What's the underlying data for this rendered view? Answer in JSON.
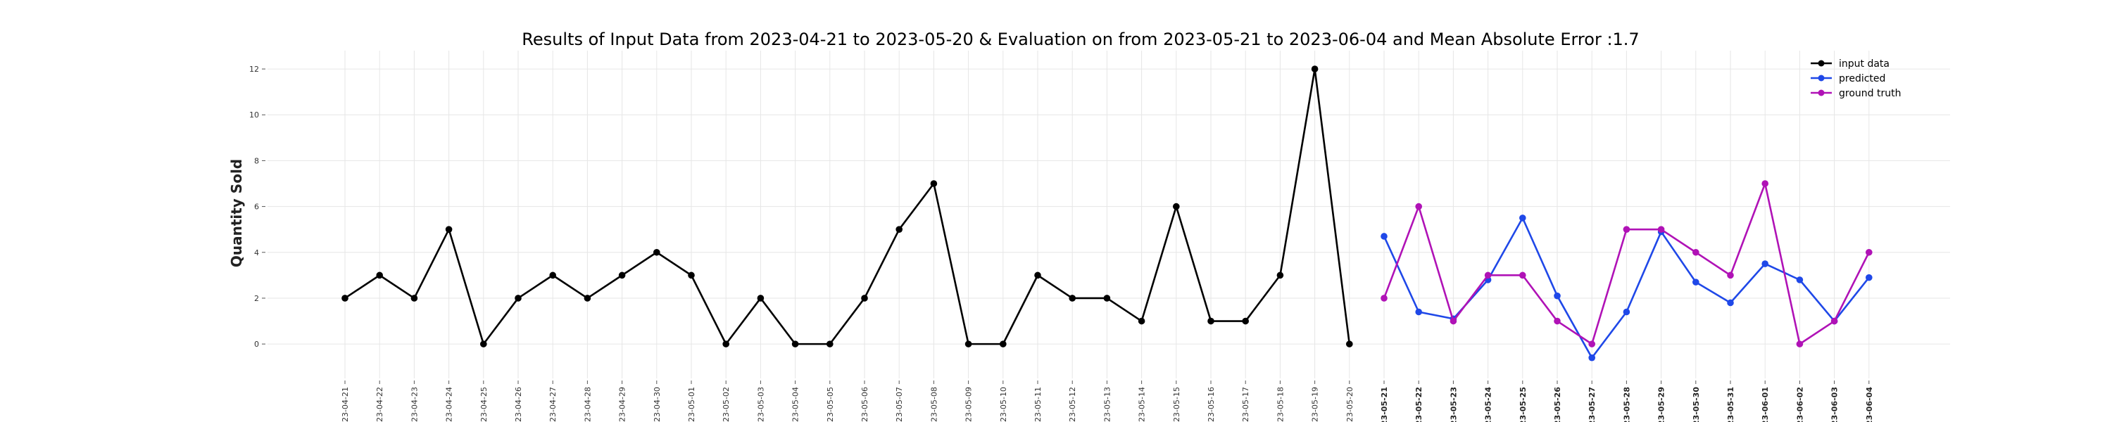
{
  "chart_data": {
    "type": "line",
    "title": "Results of Input Data from 2023-04-21 to 2023-05-20 & Evaluation on from 2023-05-21 to 2023-06-04 and Mean Absolute Error  :1.7",
    "xlabel": "",
    "ylabel": "Quantity Sold",
    "ylim": [
      -1.5,
      12.8
    ],
    "yticks": [
      0,
      2,
      4,
      6,
      8,
      10,
      12
    ],
    "ytick_labels": [
      "0",
      "2",
      "4",
      "6",
      "8",
      "10",
      "12"
    ],
    "grid": true,
    "legend_position": "top-right",
    "categories": [
      "2023-04-21",
      "2023-04-22",
      "2023-04-23",
      "2023-04-24",
      "2023-04-25",
      "2023-04-26",
      "2023-04-27",
      "2023-04-28",
      "2023-04-29",
      "2023-04-30",
      "2023-05-01",
      "2023-05-02",
      "2023-05-03",
      "2023-05-04",
      "2023-05-05",
      "2023-05-06",
      "2023-05-07",
      "2023-05-08",
      "2023-05-09",
      "2023-05-10",
      "2023-05-11",
      "2023-05-12",
      "2023-05-13",
      "2023-05-14",
      "2023-05-15",
      "2023-05-16",
      "2023-05-17",
      "2023-05-18",
      "2023-05-19",
      "2023-05-20",
      "2023-05-21",
      "2023-05-22",
      "2023-05-23",
      "2023-05-24",
      "2023-05-25",
      "2023-05-26",
      "2023-05-27",
      "2023-05-28",
      "2023-05-29",
      "2023-05-30",
      "2023-05-31",
      "2023-06-01",
      "2023-06-02",
      "2023-06-03",
      "2023-06-04"
    ],
    "tick_labels": [
      "23-04-21",
      "23-04-22",
      "23-04-23",
      "23-04-24",
      "23-04-25",
      "23-04-26",
      "23-04-27",
      "23-04-28",
      "23-04-29",
      "23-04-30",
      "23-05-01",
      "23-05-02",
      "23-05-03",
      "23-05-04",
      "23-05-05",
      "23-05-06",
      "23-05-07",
      "23-05-08",
      "23-05-09",
      "23-05-10",
      "23-05-11",
      "23-05-12",
      "23-05-13",
      "23-05-14",
      "23-05-15",
      "23-05-16",
      "23-05-17",
      "23-05-18",
      "23-05-19",
      "23-05-20",
      "23-05-21",
      "23-05-22",
      "23-05-23",
      "23-05-24",
      "23-05-25",
      "23-05-26",
      "23-05-27",
      "23-05-28",
      "23-05-29",
      "23-05-30",
      "23-05-31",
      "23-06-01",
      "23-06-02",
      "23-06-03",
      "23-06-04"
    ],
    "bold_ticks_from": "2023-05-21",
    "series": [
      {
        "name": "input data",
        "color": "#000000",
        "x": [
          "2023-04-21",
          "2023-04-22",
          "2023-04-23",
          "2023-04-24",
          "2023-04-25",
          "2023-04-26",
          "2023-04-27",
          "2023-04-28",
          "2023-04-29",
          "2023-04-30",
          "2023-05-01",
          "2023-05-02",
          "2023-05-03",
          "2023-05-04",
          "2023-05-05",
          "2023-05-06",
          "2023-05-07",
          "2023-05-08",
          "2023-05-09",
          "2023-05-10",
          "2023-05-11",
          "2023-05-12",
          "2023-05-13",
          "2023-05-14",
          "2023-05-15",
          "2023-05-16",
          "2023-05-17",
          "2023-05-18",
          "2023-05-19",
          "2023-05-20"
        ],
        "values": [
          2,
          3,
          2,
          5,
          0,
          2,
          3,
          2,
          3,
          4,
          3,
          0,
          2,
          0,
          0,
          2,
          5,
          7,
          0,
          0,
          3,
          2,
          2,
          1,
          6,
          1,
          1,
          3,
          12,
          0
        ]
      },
      {
        "name": "predicted",
        "color": "#1f48e8",
        "x": [
          "2023-05-21",
          "2023-05-22",
          "2023-05-23",
          "2023-05-24",
          "2023-05-25",
          "2023-05-26",
          "2023-05-27",
          "2023-05-28",
          "2023-05-29",
          "2023-05-30",
          "2023-05-31",
          "2023-06-01",
          "2023-06-02",
          "2023-06-03",
          "2023-06-04"
        ],
        "values": [
          4.7,
          1.4,
          1.1,
          2.8,
          5.5,
          2.1,
          -0.6,
          1.4,
          4.9,
          2.7,
          1.8,
          3.5,
          2.8,
          1.0,
          2.9
        ]
      },
      {
        "name": "ground truth",
        "color": "#b012b6",
        "x": [
          "2023-05-21",
          "2023-05-22",
          "2023-05-23",
          "2023-05-24",
          "2023-05-25",
          "2023-05-26",
          "2023-05-27",
          "2023-05-28",
          "2023-05-29",
          "2023-05-30",
          "2023-05-31",
          "2023-06-01",
          "2023-06-02",
          "2023-06-03",
          "2023-06-04"
        ],
        "values": [
          2,
          6,
          1,
          3,
          3,
          1,
          0,
          5,
          5,
          4,
          3,
          7,
          0,
          1,
          4
        ]
      }
    ]
  }
}
